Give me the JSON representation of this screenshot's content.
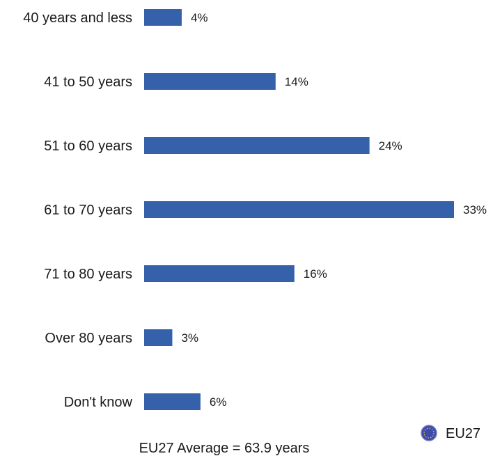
{
  "chart_data": {
    "type": "bar",
    "orientation": "horizontal",
    "categories": [
      "40 years and less",
      "41 to 50 years",
      "51 to 60 years",
      "61 to 70 years",
      "71 to 80 years",
      "Over 80 years",
      "Don't know"
    ],
    "series": [
      {
        "name": "EU27",
        "values": [
          4,
          14,
          24,
          33,
          16,
          3,
          6
        ],
        "value_labels": [
          "4%",
          "14%",
          "24%",
          "33%",
          "16%",
          "3%",
          "6%"
        ]
      }
    ],
    "unit": "%",
    "xlim": [
      0,
      33
    ],
    "grid": false,
    "legend_placement": "bottom-right",
    "bar_color": "#3561aa",
    "legend_icon": "eu-flag-circle-icon",
    "note": "EU27 Average = 63.9 years"
  }
}
